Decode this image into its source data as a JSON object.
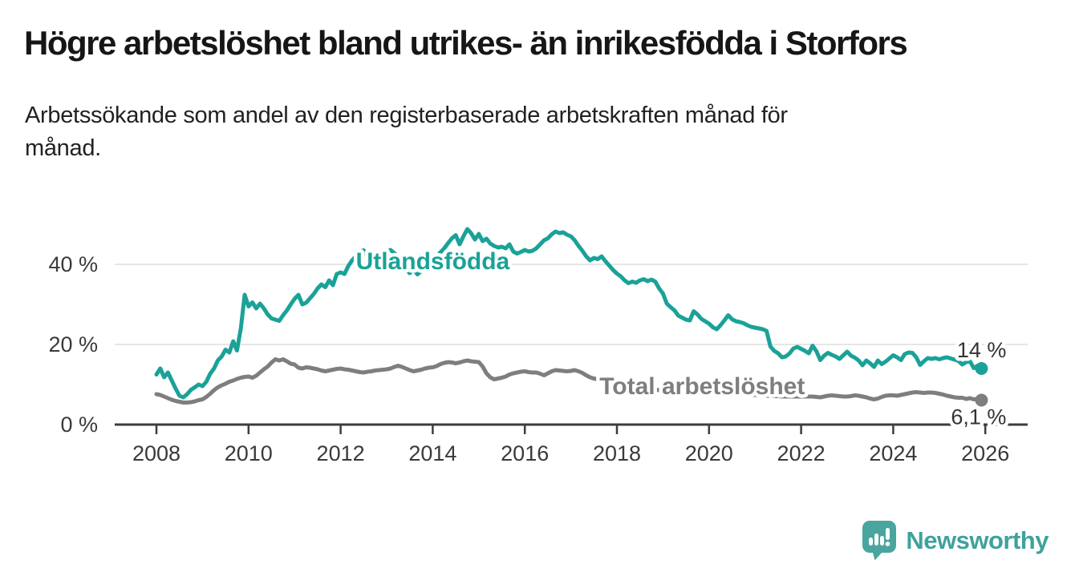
{
  "header": {
    "title": "Högre arbetslöshet bland utrikes- än inrikesfödda i Storfors",
    "subtitle": "Arbetssökande som andel av den registerbaserade arbetskraften månad för månad.",
    "subtitle_lines": [
      "Arbetssökande som andel av den registerbaserade arbetskraften månad för",
      "månad."
    ]
  },
  "branding": {
    "name": "Newsworthy",
    "logo_icon": "bar-chart-speech-bubble",
    "logo_color": "#4aa59f",
    "text_color": "#3fa29c"
  },
  "chart_data": {
    "type": "line",
    "title": "Högre arbetslöshet bland utrikes- än inrikesfödda i Storfors",
    "subtitle": "Arbetssökande som andel av den registerbaserade arbetskraften månad för månad.",
    "grid": "horizontal-only",
    "start_year": 2008,
    "step_months": 1,
    "x_axis": {
      "tick_years": [
        2008,
        2010,
        2012,
        2014,
        2016,
        2018,
        2020,
        2022,
        2024,
        2026
      ]
    },
    "y_axis": {
      "tick_labels": [
        "0 %",
        "20 %",
        "40 %"
      ],
      "tick_values": [
        0,
        20,
        40
      ],
      "range": [
        0,
        52
      ],
      "unit": "%"
    },
    "colors": {
      "gridline": "#dedede",
      "axis": "#3d3d3d",
      "tick_text": "#3a3a3a"
    },
    "series": [
      {
        "name": "Utlandsfödda",
        "color": "#1aa298",
        "end_label": "14 %",
        "end_value": 14.0,
        "values": [
          12.5,
          14.0,
          11.8,
          13.0,
          11.0,
          9.0,
          7.2,
          6.8,
          7.6,
          8.7,
          9.3,
          10.0,
          9.6,
          10.7,
          12.7,
          14.0,
          16.0,
          17.0,
          18.7,
          18.0,
          20.8,
          18.5,
          24.0,
          32.4,
          29.5,
          30.5,
          29.0,
          30.2,
          29.0,
          27.5,
          26.5,
          26.2,
          25.9,
          27.3,
          28.5,
          30.0,
          31.4,
          32.4,
          30.0,
          30.4,
          31.5,
          32.6,
          34.0,
          35.0,
          34.3,
          36.0,
          34.8,
          37.6,
          38.0,
          37.6,
          39.6,
          41.0,
          42.0,
          43.2,
          43.5,
          41.8,
          40.5,
          41.5,
          42.3,
          42.8,
          43.2,
          43.6,
          42.8,
          41.8,
          40.5,
          38.8,
          37.8,
          38.8,
          37.5,
          38.3,
          38.6,
          40.2,
          41.2,
          42.0,
          43.0,
          44.0,
          45.3,
          46.5,
          47.3,
          45.0,
          47.0,
          48.8,
          47.8,
          46.2,
          47.6,
          45.8,
          46.4,
          45.2,
          44.6,
          44.2,
          44.4,
          44.0,
          45.0,
          43.2,
          42.7,
          43.1,
          43.6,
          43.2,
          43.4,
          44.0,
          45.0,
          46.0,
          46.5,
          47.5,
          48.2,
          47.8,
          48.0,
          47.4,
          47.0,
          46.0,
          44.6,
          43.4,
          42.0,
          41.0,
          41.6,
          41.3,
          42.0,
          40.8,
          39.7,
          38.6,
          37.7,
          37.0,
          36.0,
          35.3,
          35.7,
          35.4,
          36.0,
          36.3,
          35.8,
          36.2,
          35.7,
          34.0,
          32.7,
          30.2,
          29.3,
          28.5,
          27.2,
          26.7,
          26.2,
          26.0,
          28.3,
          27.5,
          26.4,
          25.8,
          25.2,
          24.3,
          23.8,
          24.8,
          26.0,
          27.3,
          26.3,
          25.8,
          25.6,
          25.3,
          24.8,
          24.4,
          24.2,
          24.0,
          23.8,
          23.4,
          19.5,
          18.4,
          17.8,
          16.8,
          17.0,
          17.8,
          19.0,
          19.4,
          18.9,
          18.4,
          17.8,
          19.7,
          18.3,
          16.1,
          17.2,
          17.9,
          17.4,
          17.0,
          16.4,
          17.3,
          18.2,
          17.2,
          16.7,
          16.0,
          14.8,
          16.0,
          15.3,
          14.4,
          16.0,
          15.1,
          15.7,
          16.5,
          17.3,
          16.8,
          16.1,
          17.6,
          18.0,
          17.9,
          16.8,
          14.9,
          15.8,
          16.6,
          16.4,
          16.6,
          16.3,
          16.6,
          16.8,
          16.5,
          16.2,
          15.9,
          15.0,
          15.6,
          15.8,
          14.1,
          14.7,
          14.0
        ]
      },
      {
        "name": "Total arbetslöshet",
        "color": "#7e7e7e",
        "end_label": "6,1 %",
        "end_value": 6.1,
        "values": [
          7.6,
          7.4,
          7.0,
          6.6,
          6.2,
          5.9,
          5.7,
          5.5,
          5.5,
          5.6,
          5.8,
          6.1,
          6.3,
          6.9,
          7.7,
          8.6,
          9.3,
          9.8,
          10.2,
          10.7,
          11.0,
          11.4,
          11.7,
          11.9,
          12.0,
          11.7,
          12.2,
          13.0,
          13.8,
          14.5,
          15.5,
          16.3,
          16.0,
          16.3,
          15.8,
          15.2,
          15.0,
          14.2,
          14.0,
          14.3,
          14.2,
          14.0,
          13.8,
          13.5,
          13.3,
          13.5,
          13.7,
          13.9,
          14.0,
          13.8,
          13.7,
          13.5,
          13.3,
          13.1,
          13.0,
          13.2,
          13.3,
          13.5,
          13.6,
          13.7,
          13.8,
          14.0,
          14.4,
          14.7,
          14.4,
          14.0,
          13.6,
          13.3,
          13.5,
          13.7,
          14.0,
          14.2,
          14.3,
          14.6,
          15.1,
          15.4,
          15.6,
          15.5,
          15.3,
          15.5,
          15.8,
          16.0,
          15.8,
          15.7,
          15.6,
          14.5,
          12.8,
          11.8,
          11.3,
          11.5,
          11.7,
          12.0,
          12.5,
          12.8,
          13.0,
          13.2,
          13.3,
          13.1,
          13.0,
          13.0,
          12.7,
          12.3,
          12.8,
          13.3,
          13.6,
          13.5,
          13.4,
          13.3,
          13.4,
          13.6,
          13.3,
          12.9,
          12.3,
          11.8,
          11.5,
          11.3,
          11.1,
          10.9,
          10.7,
          10.5,
          10.3,
          10.1,
          9.9,
          9.7,
          9.5,
          9.4,
          9.2,
          9.1,
          8.9,
          8.8,
          8.7,
          8.6,
          8.5,
          8.4,
          8.3,
          8.2,
          8.1,
          8.0,
          7.9,
          7.9,
          7.8,
          7.8,
          7.7,
          7.7,
          7.7,
          7.7,
          7.8,
          7.9,
          8.0,
          8.0,
          7.9,
          7.8,
          7.7,
          7.6,
          7.5,
          7.4,
          7.4,
          7.3,
          7.3,
          7.2,
          7.2,
          7.1,
          7.1,
          7.0,
          7.0,
          7.0,
          7.0,
          7.0,
          7.0,
          7.0,
          7.0,
          7.0,
          6.9,
          6.8,
          7.0,
          7.2,
          7.3,
          7.2,
          7.1,
          7.0,
          7.0,
          7.1,
          7.3,
          7.2,
          7.0,
          6.8,
          6.5,
          6.3,
          6.5,
          6.9,
          7.2,
          7.3,
          7.3,
          7.2,
          7.4,
          7.6,
          7.8,
          8.0,
          8.1,
          8.0,
          7.9,
          8.0,
          8.0,
          7.9,
          7.7,
          7.5,
          7.2,
          7.0,
          6.8,
          6.7,
          6.7,
          6.4,
          6.6,
          6.3,
          6.4,
          6.1
        ]
      }
    ],
    "annotations": [
      {
        "text": "Utlandsfödda",
        "x": 2014.0,
        "baseline_value": 38.8,
        "anchor": "middle",
        "color": "#1aa298"
      },
      {
        "text": "Total arbetslöshet",
        "x": 2017.62,
        "baseline_value": 7.6,
        "anchor": "start",
        "color": "#7e7e7e"
      }
    ]
  }
}
